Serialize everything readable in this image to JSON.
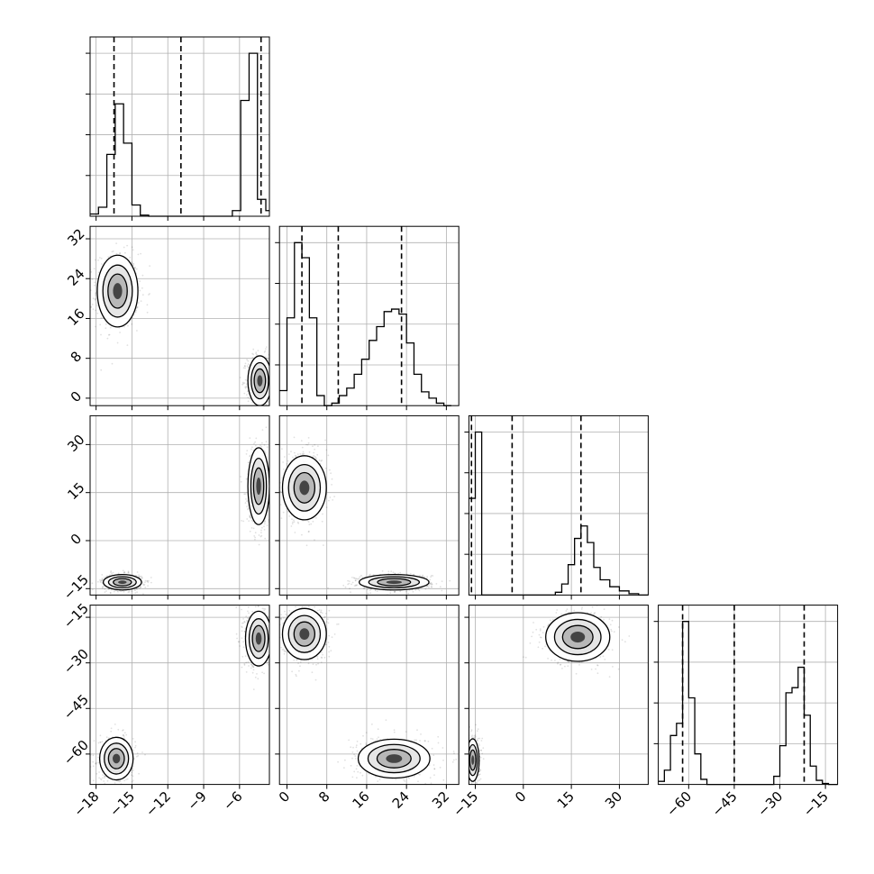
{
  "chart_data": {
    "type": "corner",
    "title": "",
    "variables": [
      {
        "ticks": [
          -18,
          -15,
          -12,
          -9,
          -6
        ],
        "tick_labels": [
          "−18",
          "−15",
          "−12",
          "−9",
          "−6"
        ],
        "range": [
          -18.5,
          -3.5
        ],
        "quantiles": [
          -16.5,
          -10.9,
          -4.2
        ]
      },
      {
        "ticks": [
          0,
          8,
          16,
          24,
          32
        ],
        "tick_labels": [
          "0",
          "8",
          "16",
          "24",
          "32"
        ],
        "range": [
          -1.5,
          34.5
        ],
        "quantiles": [
          3.0,
          10.3,
          23.0
        ]
      },
      {
        "ticks": [
          -15,
          0,
          15,
          30
        ],
        "tick_labels": [
          "−15",
          "0",
          "15",
          "30"
        ],
        "range": [
          -17,
          39
        ],
        "quantiles": [
          -16.2,
          -3.5,
          18.0
        ]
      },
      {
        "ticks": [
          -60,
          -45,
          -30,
          -15
        ],
        "tick_labels": [
          "−60",
          "−45",
          "−30",
          "−15"
        ],
        "range": [
          -70,
          -11
        ],
        "quantiles": [
          -62.0,
          -45.0,
          -22.0
        ]
      }
    ],
    "histograms": [
      {
        "edges": [
          -18.5,
          -17.8,
          -17.1,
          -16.4,
          -15.7,
          -15.0,
          -14.3,
          -13.6,
          -12.9,
          -12.2,
          -11.5,
          -10.8,
          -10.1,
          -9.4,
          -8.7,
          -8.0,
          -7.3,
          -6.6,
          -5.9,
          -5.2,
          -4.5,
          -3.8,
          -3.5
        ],
        "counts": [
          2,
          8,
          55,
          100,
          65,
          10,
          1,
          0,
          0,
          0,
          0,
          0,
          0,
          0,
          0,
          0,
          0,
          5,
          103,
          145,
          15,
          5
        ]
      },
      {
        "edges": [
          -1.5,
          0.0,
          1.5,
          3.0,
          4.5,
          6.0,
          7.5,
          9.0,
          10.5,
          12.0,
          13.5,
          15.0,
          16.5,
          18.0,
          19.5,
          21.0,
          22.5,
          24.0,
          25.5,
          27.0,
          28.5,
          30.0,
          31.5,
          33.0
        ],
        "counts": [
          12,
          70,
          130,
          118,
          70,
          8,
          0,
          2,
          8,
          14,
          25,
          37,
          52,
          63,
          75,
          77,
          73,
          50,
          25,
          11,
          6,
          2,
          0
        ]
      },
      {
        "edges": [
          -17,
          -15,
          -13,
          -10,
          -7,
          -4,
          -1,
          2,
          5,
          8,
          10,
          12,
          14,
          16,
          18,
          20,
          22,
          24,
          27,
          30,
          33,
          36,
          39
        ],
        "counts": [
          70,
          118,
          0,
          0,
          0,
          0,
          0,
          0,
          0,
          0,
          2,
          8,
          22,
          41,
          50,
          38,
          20,
          11,
          6,
          3,
          1,
          0
        ]
      },
      {
        "edges": [
          -70,
          -68,
          -66,
          -64,
          -62,
          -60,
          -58,
          -56,
          -54,
          -40,
          -38,
          -36,
          -34,
          -32,
          -30,
          -28,
          -26,
          -24,
          -22,
          -20,
          -18,
          -16,
          -14,
          -12,
          -11
        ],
        "counts": [
          3,
          14,
          48,
          60,
          160,
          85,
          30,
          5,
          0,
          0,
          0,
          0,
          0,
          8,
          38,
          90,
          95,
          115,
          68,
          18,
          4,
          1,
          0,
          0
        ]
      }
    ],
    "modes": [
      {
        "pair": [
          1,
          0
        ],
        "clusters": [
          {
            "mean": [
              -16.2,
              21.5
            ],
            "sd": [
              0.85,
              3.6
            ],
            "weight": 0.5
          },
          {
            "mean": [
              -4.3,
              3.5
            ],
            "sd": [
              0.5,
              2.5
            ],
            "weight": 0.5
          }
        ]
      },
      {
        "pair": [
          2,
          0
        ],
        "clusters": [
          {
            "mean": [
              -15.8,
              -13
            ],
            "sd": [
              0.8,
              1.2
            ],
            "weight": 0.5
          },
          {
            "mean": [
              -4.4,
              17
            ],
            "sd": [
              0.45,
              6
            ],
            "weight": 0.5
          }
        ]
      },
      {
        "pair": [
          2,
          1
        ],
        "clusters": [
          {
            "mean": [
              3.5,
              16.5
            ],
            "sd": [
              2.2,
              5
            ],
            "weight": 0.5
          },
          {
            "mean": [
              21.5,
              -13
            ],
            "sd": [
              3.5,
              1.2
            ],
            "weight": 0.5
          }
        ]
      },
      {
        "pair": [
          3,
          0
        ],
        "clusters": [
          {
            "mean": [
              -16.3,
              -61.5
            ],
            "sd": [
              0.7,
              3.5
            ],
            "weight": 0.5
          },
          {
            "mean": [
              -4.4,
              -22
            ],
            "sd": [
              0.55,
              4.5
            ],
            "weight": 0.5
          }
        ]
      },
      {
        "pair": [
          3,
          1
        ],
        "clusters": [
          {
            "mean": [
              3.5,
              -20.5
            ],
            "sd": [
              2.2,
              4.2
            ],
            "weight": 0.5
          },
          {
            "mean": [
              21.5,
              -61.5
            ],
            "sd": [
              3.6,
              3.2
            ],
            "weight": 0.5
          }
        ]
      },
      {
        "pair": [
          3,
          2
        ],
        "clusters": [
          {
            "mean": [
              -15.8,
              -62
            ],
            "sd": [
              1.0,
              3.5
            ],
            "weight": 0.5
          },
          {
            "mean": [
              17.0,
              -21.5
            ],
            "sd": [
              5.0,
              4.0
            ],
            "weight": 0.5
          }
        ]
      }
    ],
    "grid": true,
    "xlabel": "",
    "ylabel": ""
  }
}
